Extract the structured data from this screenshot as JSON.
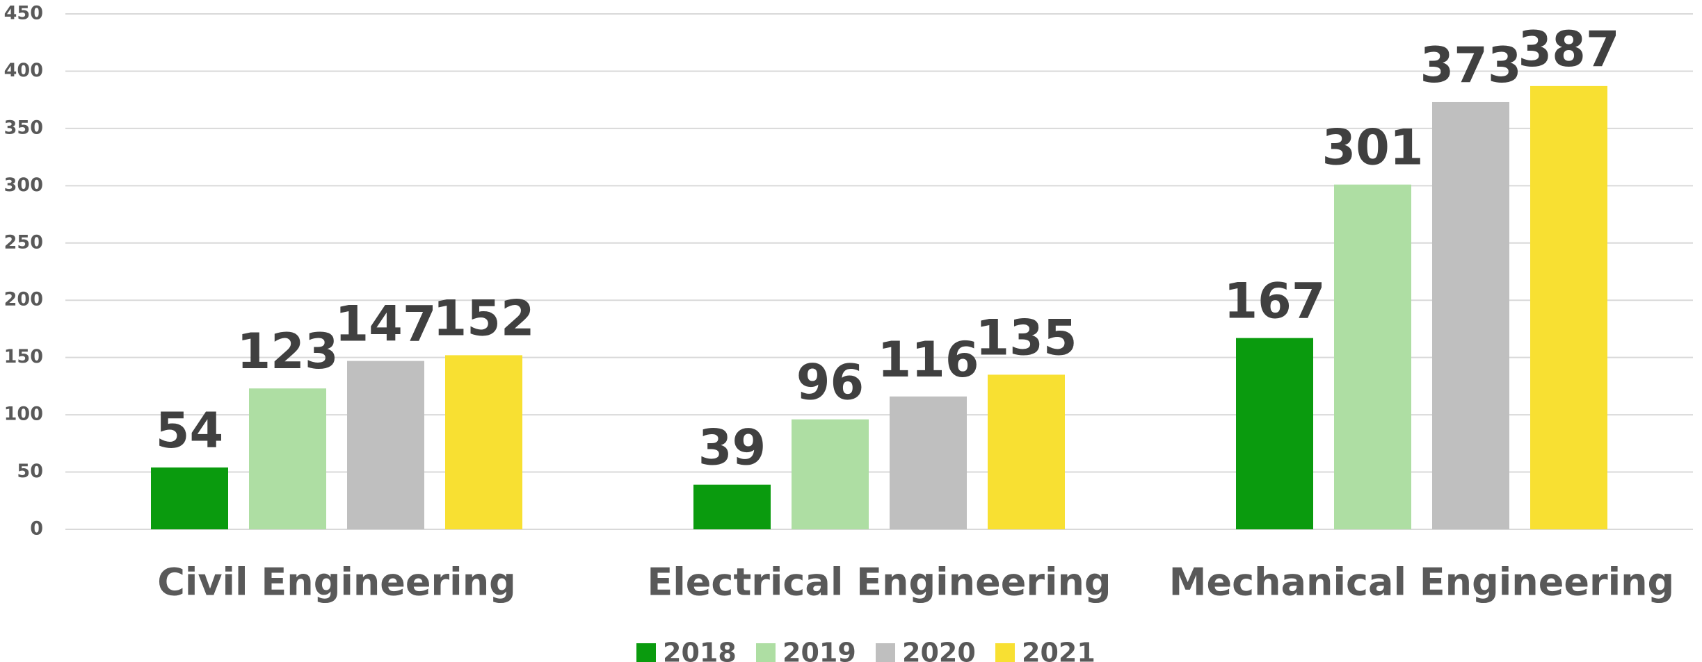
{
  "chart_data": {
    "type": "bar",
    "categories": [
      "Civil Engineering",
      "Electrical Engineering",
      "Mechanical Engineering"
    ],
    "series": [
      {
        "name": "2018",
        "color": "#0a9b0e",
        "values": [
          54,
          39,
          167
        ]
      },
      {
        "name": "2019",
        "color": "#aedea3",
        "values": [
          123,
          96,
          301
        ]
      },
      {
        "name": "2020",
        "color": "#bfbfbf",
        "values": [
          147,
          116,
          373
        ]
      },
      {
        "name": "2021",
        "color": "#f8e032",
        "values": [
          152,
          135,
          387
        ]
      }
    ],
    "ylim": [
      0,
      450
    ],
    "yticks": [
      0,
      50,
      100,
      150,
      200,
      250,
      300,
      350,
      400,
      450
    ],
    "grid": true,
    "legend": "bottom"
  }
}
